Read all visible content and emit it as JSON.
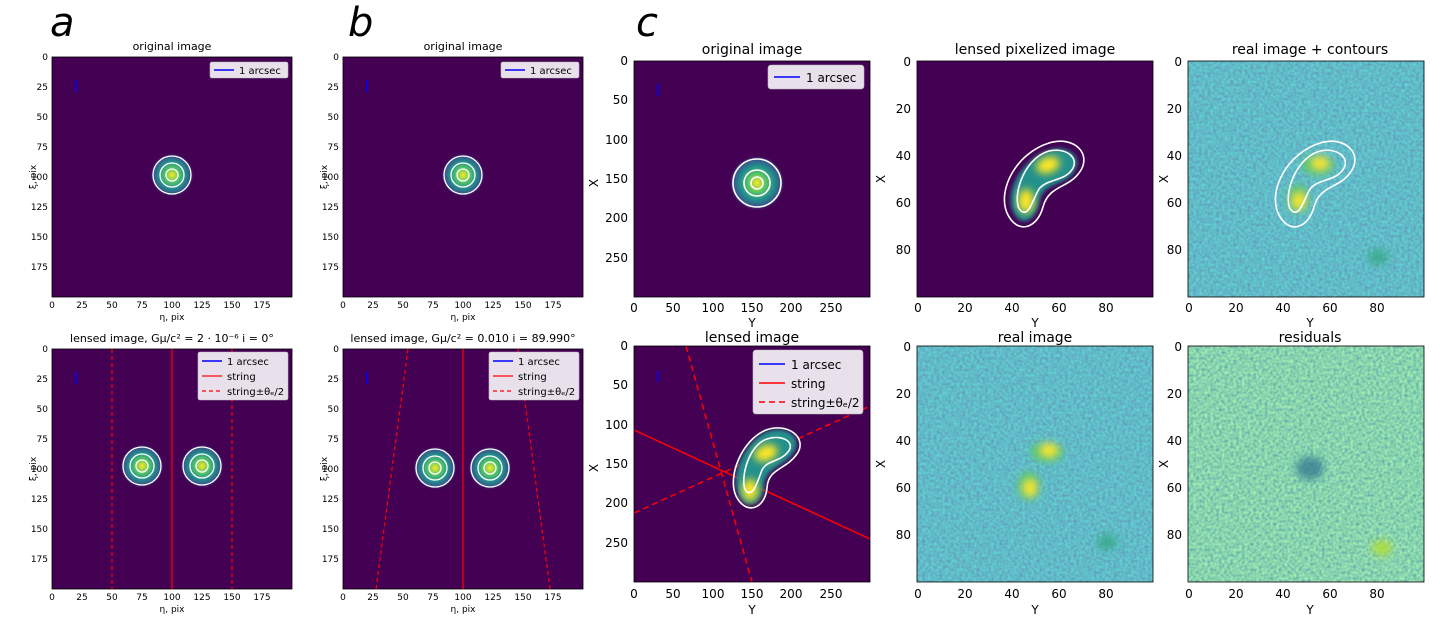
{
  "figure": {
    "panel_letters": [
      "a",
      "b",
      "c"
    ],
    "colors": {
      "background": "#440154",
      "string_line": "#ff0000",
      "scale_bar": "#0000ff",
      "contour": "#ffffff",
      "legend_bg": "#e8e0ea"
    },
    "panels": [
      {
        "id": "a-top",
        "title": "original image",
        "xlabel": "η, pix",
        "ylabel": "ξ, pix",
        "xticks": [
          "0",
          "25",
          "50",
          "75",
          "100",
          "125",
          "150",
          "175"
        ],
        "yticks": [
          "0",
          "25",
          "50",
          "75",
          "100",
          "125",
          "150",
          "175"
        ],
        "legend": [
          "1 arcsec"
        ]
      },
      {
        "id": "a-bottom",
        "title": "lensed image, Gμ/c² = 2 · 10⁻⁶ i = 0°",
        "xlabel": "η, pix",
        "ylabel": "ξ, pix",
        "xticks": [
          "0",
          "25",
          "50",
          "75",
          "100",
          "125",
          "150",
          "175"
        ],
        "yticks": [
          "0",
          "25",
          "50",
          "75",
          "100",
          "125",
          "150",
          "175"
        ],
        "legend": [
          "1 arcsec",
          "string",
          "string±θₑ/2"
        ]
      },
      {
        "id": "b-top",
        "title": "original image",
        "xlabel": "η, pix",
        "ylabel": "ξ, pix",
        "xticks": [
          "0",
          "25",
          "50",
          "75",
          "100",
          "125",
          "150",
          "175"
        ],
        "yticks": [
          "0",
          "25",
          "50",
          "75",
          "100",
          "125",
          "150",
          "175"
        ],
        "legend": [
          "1 arcsec"
        ]
      },
      {
        "id": "b-bottom",
        "title": "lensed image, Gμ/c² = 0.010 i = 89.990°",
        "xlabel": "η, pix",
        "ylabel": "ξ, pix",
        "xticks": [
          "0",
          "25",
          "50",
          "75",
          "100",
          "125",
          "150",
          "175"
        ],
        "yticks": [
          "0",
          "25",
          "50",
          "75",
          "100",
          "125",
          "150",
          "175"
        ],
        "legend": [
          "1 arcsec",
          "string",
          "string±θₑ/2"
        ]
      },
      {
        "id": "c-orig",
        "title": "original image",
        "xlabel": "Y",
        "ylabel": "X",
        "xticks": [
          "0",
          "50",
          "100",
          "150",
          "200",
          "250"
        ],
        "yticks": [
          "0",
          "50",
          "100",
          "150",
          "200",
          "250"
        ],
        "legend": [
          "1 arcsec"
        ]
      },
      {
        "id": "c-lensed",
        "title": "lensed image",
        "xlabel": "Y",
        "ylabel": "X",
        "xticks": [
          "0",
          "50",
          "100",
          "150",
          "200",
          "250"
        ],
        "yticks": [
          "0",
          "50",
          "100",
          "150",
          "200",
          "250"
        ],
        "legend": [
          "1 arcsec",
          "string",
          "string±θₑ/2"
        ]
      },
      {
        "id": "c-pix",
        "title": "lensed pixelized image",
        "xlabel": "Y",
        "ylabel": "X",
        "xticks": [
          "0",
          "20",
          "40",
          "60",
          "80"
        ],
        "yticks": [
          "0",
          "20",
          "40",
          "60",
          "80"
        ],
        "legend": []
      },
      {
        "id": "c-real",
        "title": "real image",
        "xlabel": "Y",
        "ylabel": "X",
        "xticks": [
          "0",
          "20",
          "40",
          "60",
          "80"
        ],
        "yticks": [
          "0",
          "20",
          "40",
          "60",
          "80"
        ],
        "legend": []
      },
      {
        "id": "c-realcont",
        "title": "real image + contours",
        "xlabel": "Y",
        "ylabel": "X",
        "xticks": [
          "0",
          "20",
          "40",
          "60",
          "80"
        ],
        "yticks": [
          "0",
          "20",
          "40",
          "60",
          "80"
        ],
        "legend": []
      },
      {
        "id": "c-resid",
        "title": "residuals",
        "xlabel": "Y",
        "ylabel": "X",
        "xticks": [
          "0",
          "20",
          "40",
          "60",
          "80"
        ],
        "yticks": [
          "0",
          "20",
          "40",
          "60",
          "80"
        ],
        "legend": []
      }
    ]
  }
}
